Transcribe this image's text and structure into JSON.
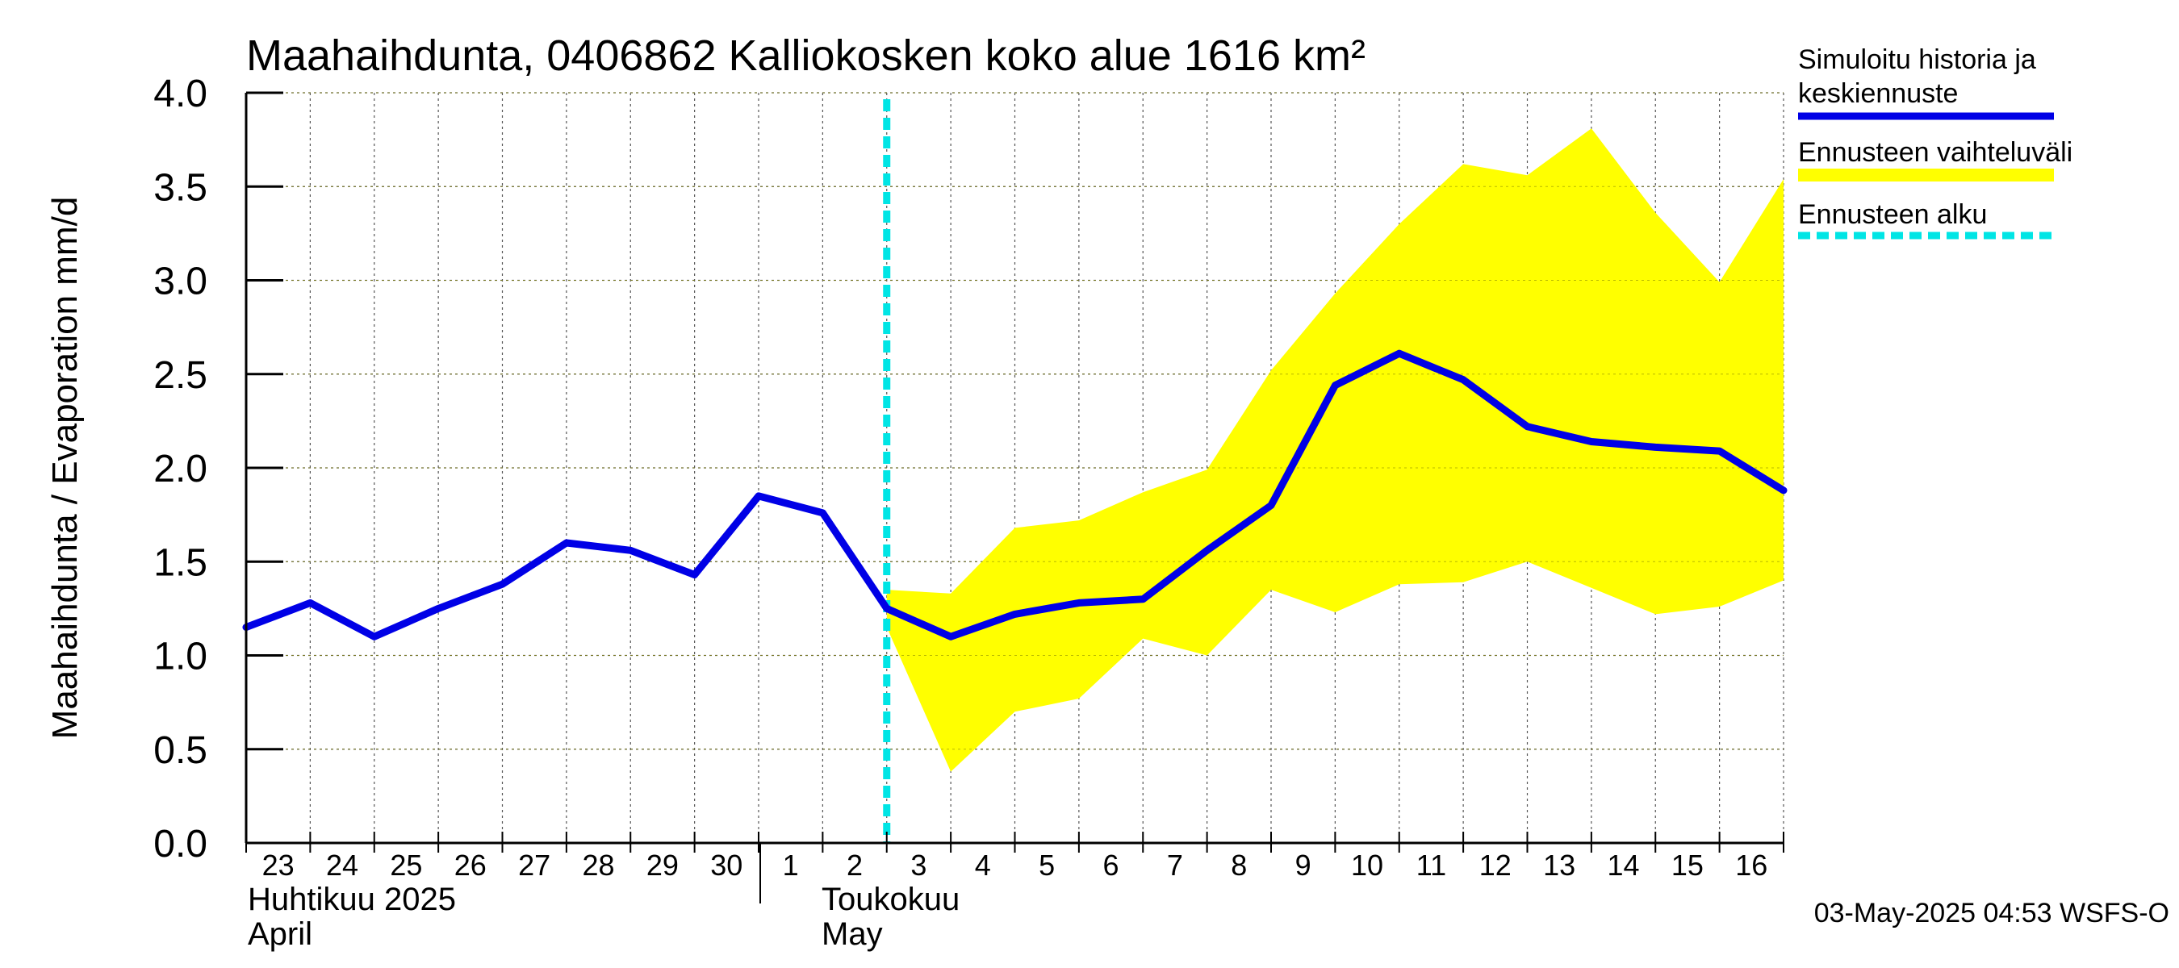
{
  "chart_data": {
    "type": "line",
    "title": "Maahaihdunta, 0406862 Kalliokosken koko alue 1616 km²",
    "ylabel": "Maahaihdunta / Evaporation   mm/d",
    "ylim": [
      0.0,
      4.0
    ],
    "yticks": [
      "0.0",
      "0.5",
      "1.0",
      "1.5",
      "2.0",
      "2.5",
      "3.0",
      "3.5",
      "4.0"
    ],
    "x_start": "2025-04-23",
    "x_end": "2025-05-17",
    "x_tick_labels": [
      "23",
      "24",
      "25",
      "26",
      "27",
      "28",
      "29",
      "30",
      "1",
      "2",
      "3",
      "4",
      "5",
      "6",
      "7",
      "8",
      "9",
      "10",
      "11",
      "12",
      "13",
      "14",
      "15",
      "16"
    ],
    "month_labels": [
      {
        "line1": "Huhtikuu  2025",
        "line2": "April",
        "date": "2025-04-23"
      },
      {
        "line1": "Toukokuu",
        "line2": "May",
        "date": "2025-05-01"
      }
    ],
    "forecast_start": "2025-05-03",
    "grid": true,
    "legend_position": "right",
    "series": [
      {
        "name": "Simuloitu historia ja keskiennuste",
        "color": "#0000e6",
        "x": [
          "2025-04-23",
          "2025-04-24",
          "2025-04-25",
          "2025-04-26",
          "2025-04-27",
          "2025-04-28",
          "2025-04-29",
          "2025-04-30",
          "2025-05-01",
          "2025-05-02",
          "2025-05-03",
          "2025-05-04",
          "2025-05-05",
          "2025-05-06",
          "2025-05-07",
          "2025-05-08",
          "2025-05-09",
          "2025-05-10",
          "2025-05-11",
          "2025-05-12",
          "2025-05-13",
          "2025-05-14",
          "2025-05-15",
          "2025-05-16",
          "2025-05-17"
        ],
        "values": [
          1.15,
          1.28,
          1.1,
          1.25,
          1.38,
          1.6,
          1.56,
          1.43,
          1.85,
          1.76,
          1.25,
          1.1,
          1.22,
          1.28,
          1.3,
          1.56,
          1.8,
          2.44,
          2.61,
          2.47,
          2.22,
          2.14,
          2.11,
          2.09,
          1.88
        ]
      },
      {
        "name": "Ennusteen vaihteluväli",
        "color": "#ffff00",
        "x": [
          "2025-05-03",
          "2025-05-04",
          "2025-05-05",
          "2025-05-06",
          "2025-05-07",
          "2025-05-08",
          "2025-05-09",
          "2025-05-10",
          "2025-05-11",
          "2025-05-12",
          "2025-05-13",
          "2025-05-14",
          "2025-05-15",
          "2025-05-16",
          "2025-05-17"
        ],
        "upper": [
          1.35,
          1.33,
          1.68,
          1.72,
          1.87,
          1.99,
          2.52,
          2.93,
          3.3,
          3.62,
          3.56,
          3.81,
          3.36,
          2.99,
          3.54
        ],
        "lower": [
          1.15,
          0.38,
          0.7,
          0.77,
          1.09,
          1.0,
          1.35,
          1.23,
          1.38,
          1.39,
          1.5,
          1.36,
          1.22,
          1.26,
          1.4
        ]
      },
      {
        "name": "Ennusteen alku",
        "color": "#00e5e5"
      }
    ]
  },
  "footer": {
    "timestamp": "03-May-2025 04:53 WSFS-O"
  }
}
